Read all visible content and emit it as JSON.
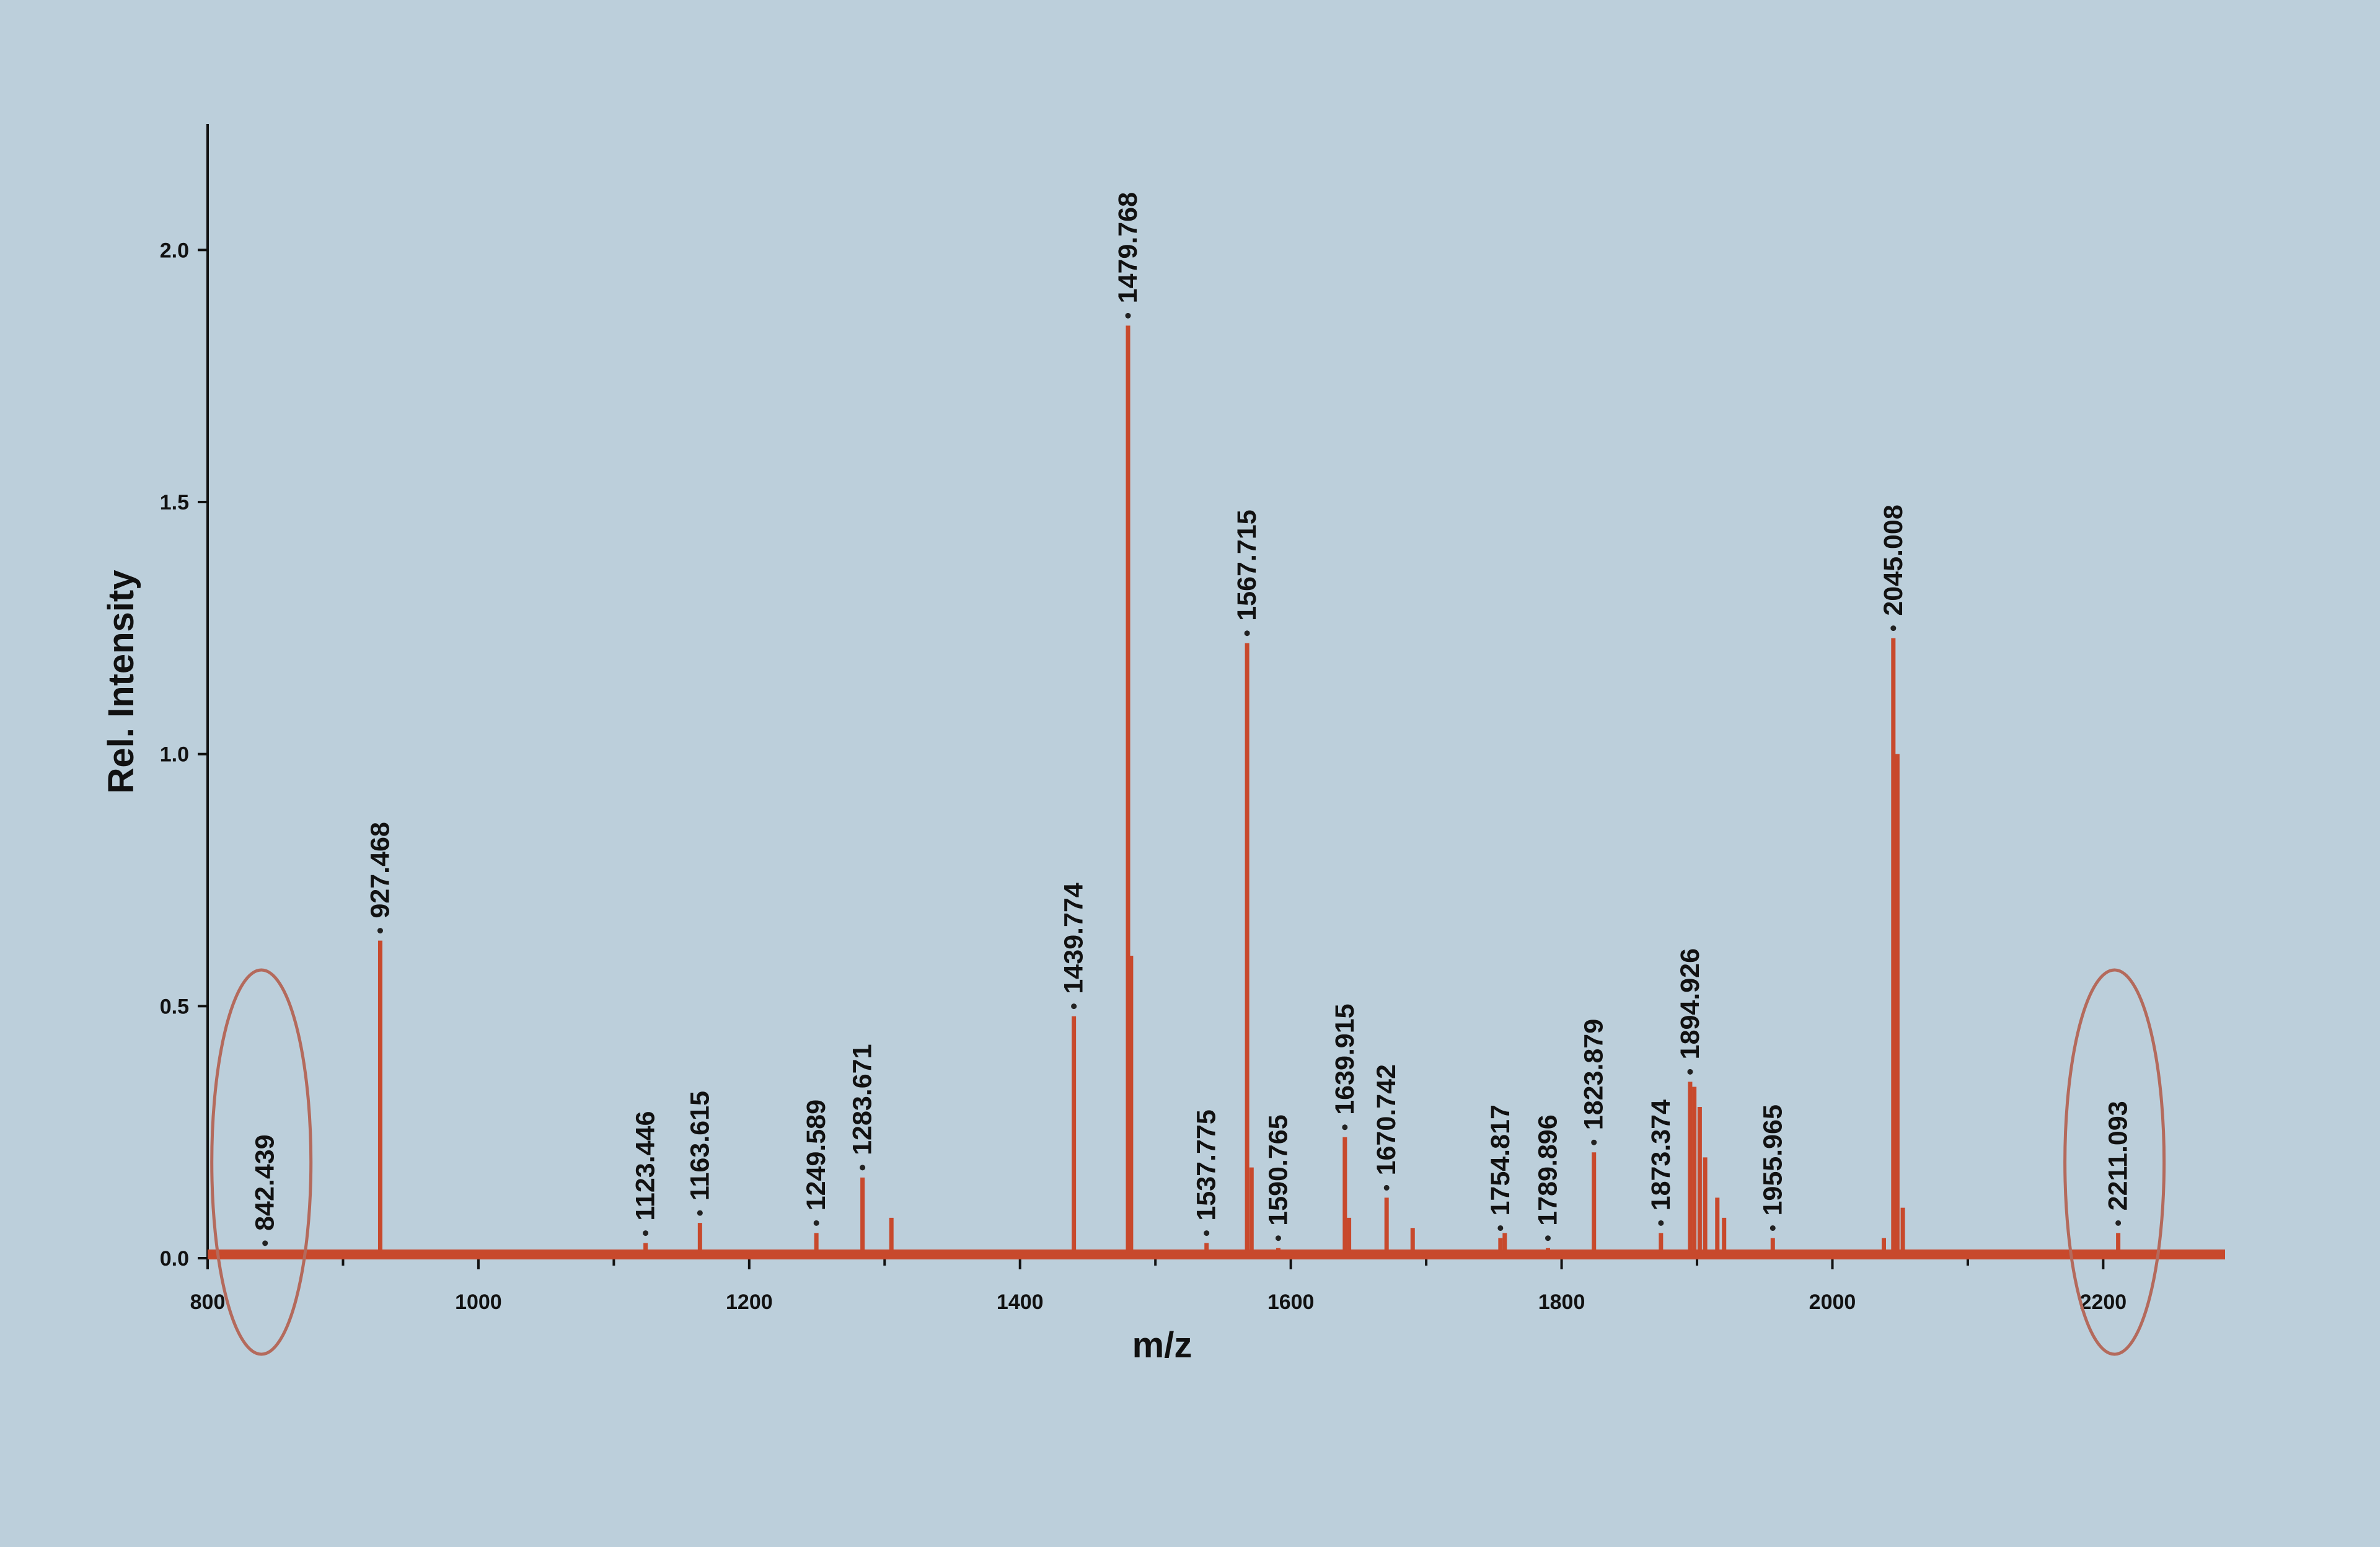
{
  "chart_data": {
    "type": "line",
    "xlabel": "m/z",
    "ylabel": "Rel. Intensity",
    "xlim": [
      800,
      2290
    ],
    "ylim": [
      0,
      2.25
    ],
    "x_ticks": [
      800,
      1000,
      1200,
      1400,
      1600,
      1800,
      2000,
      2200
    ],
    "y_ticks": [
      0.0,
      0.5,
      1.0,
      1.5,
      2.0
    ],
    "y_tick_labels": [
      "0.0",
      "0.5",
      "1.0",
      "1.5",
      "2.0"
    ],
    "grid": false,
    "colors": {
      "spectrum": "#c8492c",
      "axis": "#111111",
      "highlight": "#b46a5c",
      "background": "#bccfdb"
    },
    "labeled_peaks": [
      {
        "mz": 842.439,
        "label": "842.439",
        "intensity": 0.01
      },
      {
        "mz": 927.468,
        "label": "927.468",
        "intensity": 0.63
      },
      {
        "mz": 1123.446,
        "label": "1123.446",
        "intensity": 0.03
      },
      {
        "mz": 1163.615,
        "label": "1163.615",
        "intensity": 0.07
      },
      {
        "mz": 1249.589,
        "label": "1249.589",
        "intensity": 0.05
      },
      {
        "mz": 1283.671,
        "label": "1283.671",
        "intensity": 0.16
      },
      {
        "mz": 1439.774,
        "label": "1439.774",
        "intensity": 0.48
      },
      {
        "mz": 1479.768,
        "label": "1479.768",
        "intensity": 1.85
      },
      {
        "mz": 1537.775,
        "label": "1537.775",
        "intensity": 0.03
      },
      {
        "mz": 1567.715,
        "label": "1567.715",
        "intensity": 1.22
      },
      {
        "mz": 1590.765,
        "label": "1590.765",
        "intensity": 0.02
      },
      {
        "mz": 1639.915,
        "label": "1639.915",
        "intensity": 0.24
      },
      {
        "mz": 1670.742,
        "label": "1670.742",
        "intensity": 0.12
      },
      {
        "mz": 1754.817,
        "label": "1754.817",
        "intensity": 0.04
      },
      {
        "mz": 1789.896,
        "label": "1789.896",
        "intensity": 0.02
      },
      {
        "mz": 1823.879,
        "label": "1823.879",
        "intensity": 0.21
      },
      {
        "mz": 1873.374,
        "label": "1873.374",
        "intensity": 0.05
      },
      {
        "mz": 1894.926,
        "label": "1894.926",
        "intensity": 0.35
      },
      {
        "mz": 1955.965,
        "label": "1955.965",
        "intensity": 0.04
      },
      {
        "mz": 2045.008,
        "label": "2045.008",
        "intensity": 1.23
      },
      {
        "mz": 2211.093,
        "label": "2211.093",
        "intensity": 0.05
      }
    ],
    "minor_peaks": [
      {
        "mz": 1305,
        "intensity": 0.08
      },
      {
        "mz": 1482,
        "intensity": 0.6
      },
      {
        "mz": 1571,
        "intensity": 0.18
      },
      {
        "mz": 1643,
        "intensity": 0.08
      },
      {
        "mz": 1690,
        "intensity": 0.06
      },
      {
        "mz": 1758,
        "intensity": 0.05
      },
      {
        "mz": 1898,
        "intensity": 0.34
      },
      {
        "mz": 1902,
        "intensity": 0.3
      },
      {
        "mz": 1906,
        "intensity": 0.2
      },
      {
        "mz": 1915,
        "intensity": 0.12
      },
      {
        "mz": 1920,
        "intensity": 0.08
      },
      {
        "mz": 2038,
        "intensity": 0.04
      },
      {
        "mz": 2048,
        "intensity": 1.0
      },
      {
        "mz": 2052,
        "intensity": 0.1
      }
    ],
    "highlighted_peaks": [
      "842.439",
      "2211.093"
    ]
  }
}
